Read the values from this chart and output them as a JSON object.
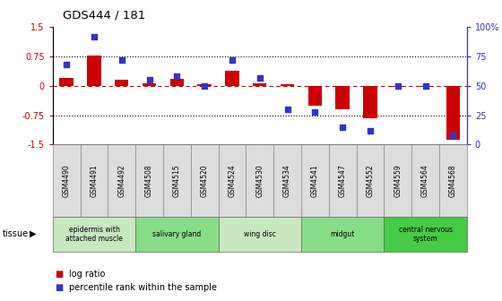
{
  "title": "GDS444 / 181",
  "samples": [
    "GSM4490",
    "GSM4491",
    "GSM4492",
    "GSM4508",
    "GSM4515",
    "GSM4520",
    "GSM4524",
    "GSM4530",
    "GSM4534",
    "GSM4541",
    "GSM4547",
    "GSM4552",
    "GSM4559",
    "GSM4564",
    "GSM4568"
  ],
  "log_ratio": [
    0.2,
    0.78,
    0.15,
    0.07,
    0.17,
    0.04,
    0.38,
    0.07,
    0.04,
    -0.52,
    -0.6,
    -0.82,
    -0.02,
    -0.02,
    -1.38
  ],
  "percentile": [
    68,
    92,
    72,
    55,
    58,
    50,
    72,
    57,
    30,
    28,
    15,
    12,
    50,
    50,
    8
  ],
  "tissue_groups": [
    {
      "label": "epidermis with\nattached muscle",
      "start": 0,
      "end": 2,
      "color": "#c8e8c0"
    },
    {
      "label": "salivary gland",
      "start": 3,
      "end": 5,
      "color": "#88dd88"
    },
    {
      "label": "wing disc",
      "start": 6,
      "end": 8,
      "color": "#c8e8c0"
    },
    {
      "label": "midgut",
      "start": 9,
      "end": 11,
      "color": "#88dd88"
    },
    {
      "label": "central nervous\nsystem",
      "start": 12,
      "end": 14,
      "color": "#44cc44"
    }
  ],
  "ylim_left": [
    -1.5,
    1.5
  ],
  "yticks_left": [
    -1.5,
    -0.75,
    0,
    0.75,
    1.5
  ],
  "ytick_labels_left": [
    "-1.5",
    "-0.75",
    "0",
    "0.75",
    "1.5"
  ],
  "ylim_right": [
    0,
    100
  ],
  "yticks_right": [
    0,
    25,
    50,
    75,
    100
  ],
  "ytick_labels_right": [
    "0",
    "25",
    "50",
    "75",
    "100%"
  ],
  "bar_color": "#cc0000",
  "dot_color": "#3333cc",
  "legend_log_ratio": "log ratio",
  "legend_percentile": "percentile rank within the sample",
  "tissue_label": "tissue",
  "bg_color": "#ffffff",
  "sample_box_color": "#dddddd",
  "bar_width": 0.5
}
